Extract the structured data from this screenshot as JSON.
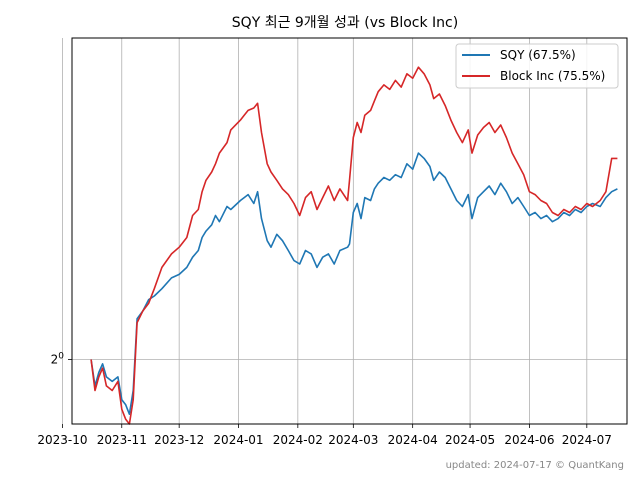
{
  "chart_data": {
    "type": "line",
    "title": "SQY 최근 9개월 성과 (vs Block Inc)",
    "xlabel": "",
    "ylabel": "",
    "y_scale": "log2",
    "y_tick_labels": [
      {
        "value": 1.0,
        "base": "2",
        "exp": "0"
      }
    ],
    "ylim": [
      0.86,
      2.12
    ],
    "xlim": [
      "2023-10-06",
      "2024-07-22"
    ],
    "x_ticks": [
      "2023-10",
      "2023-11",
      "2023-12",
      "2024-01",
      "2024-02",
      "2024-03",
      "2024-04",
      "2024-05",
      "2024-06",
      "2024-07"
    ],
    "grid": true,
    "legend_position": "top-right",
    "series": [
      {
        "name": "SQY (67.5%)",
        "color": "#1f77b4",
        "points": [
          [
            "2023-10-16",
            1.0
          ],
          [
            "2023-10-18",
            0.94
          ],
          [
            "2023-10-20",
            0.97
          ],
          [
            "2023-10-22",
            0.99
          ],
          [
            "2023-10-24",
            0.96
          ],
          [
            "2023-10-27",
            0.95
          ],
          [
            "2023-10-30",
            0.96
          ],
          [
            "2023-11-01",
            0.91
          ],
          [
            "2023-11-03",
            0.9
          ],
          [
            "2023-11-05",
            0.88
          ],
          [
            "2023-11-07",
            0.93
          ],
          [
            "2023-11-09",
            1.1
          ],
          [
            "2023-11-12",
            1.12
          ],
          [
            "2023-11-15",
            1.15
          ],
          [
            "2023-11-18",
            1.16
          ],
          [
            "2023-11-22",
            1.18
          ],
          [
            "2023-11-27",
            1.21
          ],
          [
            "2023-12-01",
            1.22
          ],
          [
            "2023-12-05",
            1.24
          ],
          [
            "2023-12-08",
            1.27
          ],
          [
            "2023-12-11",
            1.29
          ],
          [
            "2023-12-13",
            1.33
          ],
          [
            "2023-12-15",
            1.35
          ],
          [
            "2023-12-18",
            1.37
          ],
          [
            "2023-12-20",
            1.4
          ],
          [
            "2023-12-22",
            1.38
          ],
          [
            "2023-12-26",
            1.43
          ],
          [
            "2023-12-28",
            1.42
          ],
          [
            "2024-01-02",
            1.45
          ],
          [
            "2024-01-04",
            1.46
          ],
          [
            "2024-01-06",
            1.47
          ],
          [
            "2024-01-09",
            1.44
          ],
          [
            "2024-01-11",
            1.48
          ],
          [
            "2024-01-13",
            1.39
          ],
          [
            "2024-01-16",
            1.32
          ],
          [
            "2024-01-18",
            1.3
          ],
          [
            "2024-01-21",
            1.34
          ],
          [
            "2024-01-24",
            1.32
          ],
          [
            "2024-01-27",
            1.29
          ],
          [
            "2024-01-30",
            1.26
          ],
          [
            "2024-02-02",
            1.25
          ],
          [
            "2024-02-05",
            1.29
          ],
          [
            "2024-02-08",
            1.28
          ],
          [
            "2024-02-11",
            1.24
          ],
          [
            "2024-02-14",
            1.27
          ],
          [
            "2024-02-17",
            1.28
          ],
          [
            "2024-02-20",
            1.25
          ],
          [
            "2024-02-23",
            1.29
          ],
          [
            "2024-02-27",
            1.3
          ],
          [
            "2024-02-28",
            1.31
          ],
          [
            "2024-03-01",
            1.41
          ],
          [
            "2024-03-03",
            1.44
          ],
          [
            "2024-03-05",
            1.39
          ],
          [
            "2024-03-07",
            1.46
          ],
          [
            "2024-03-10",
            1.45
          ],
          [
            "2024-03-12",
            1.49
          ],
          [
            "2024-03-14",
            1.51
          ],
          [
            "2024-03-17",
            1.53
          ],
          [
            "2024-03-20",
            1.52
          ],
          [
            "2024-03-23",
            1.54
          ],
          [
            "2024-03-26",
            1.53
          ],
          [
            "2024-03-29",
            1.58
          ],
          [
            "2024-04-01",
            1.56
          ],
          [
            "2024-04-04",
            1.62
          ],
          [
            "2024-04-07",
            1.6
          ],
          [
            "2024-04-10",
            1.57
          ],
          [
            "2024-04-12",
            1.52
          ],
          [
            "2024-04-15",
            1.55
          ],
          [
            "2024-04-18",
            1.53
          ],
          [
            "2024-04-21",
            1.49
          ],
          [
            "2024-04-24",
            1.45
          ],
          [
            "2024-04-27",
            1.43
          ],
          [
            "2024-04-30",
            1.47
          ],
          [
            "2024-05-02",
            1.39
          ],
          [
            "2024-05-05",
            1.46
          ],
          [
            "2024-05-08",
            1.48
          ],
          [
            "2024-05-11",
            1.5
          ],
          [
            "2024-05-14",
            1.47
          ],
          [
            "2024-05-17",
            1.51
          ],
          [
            "2024-05-20",
            1.48
          ],
          [
            "2024-05-23",
            1.44
          ],
          [
            "2024-05-26",
            1.46
          ],
          [
            "2024-05-29",
            1.43
          ],
          [
            "2024-06-01",
            1.4
          ],
          [
            "2024-06-04",
            1.41
          ],
          [
            "2024-06-07",
            1.39
          ],
          [
            "2024-06-10",
            1.4
          ],
          [
            "2024-06-13",
            1.38
          ],
          [
            "2024-06-16",
            1.39
          ],
          [
            "2024-06-19",
            1.41
          ],
          [
            "2024-06-22",
            1.4
          ],
          [
            "2024-06-25",
            1.42
          ],
          [
            "2024-06-28",
            1.41
          ],
          [
            "2024-07-01",
            1.43
          ],
          [
            "2024-07-04",
            1.44
          ],
          [
            "2024-07-08",
            1.43
          ],
          [
            "2024-07-11",
            1.46
          ],
          [
            "2024-07-14",
            1.48
          ],
          [
            "2024-07-17",
            1.49
          ]
        ]
      },
      {
        "name": "Block Inc (75.5%)",
        "color": "#d62728",
        "points": [
          [
            "2023-10-16",
            1.0
          ],
          [
            "2023-10-18",
            0.93
          ],
          [
            "2023-10-20",
            0.96
          ],
          [
            "2023-10-22",
            0.98
          ],
          [
            "2023-10-24",
            0.94
          ],
          [
            "2023-10-27",
            0.93
          ],
          [
            "2023-10-30",
            0.95
          ],
          [
            "2023-11-01",
            0.89
          ],
          [
            "2023-11-03",
            0.87
          ],
          [
            "2023-11-05",
            0.86
          ],
          [
            "2023-11-07",
            0.91
          ],
          [
            "2023-11-09",
            1.09
          ],
          [
            "2023-11-12",
            1.12
          ],
          [
            "2023-11-15",
            1.14
          ],
          [
            "2023-11-18",
            1.18
          ],
          [
            "2023-11-22",
            1.24
          ],
          [
            "2023-11-27",
            1.28
          ],
          [
            "2023-12-01",
            1.3
          ],
          [
            "2023-12-05",
            1.33
          ],
          [
            "2023-12-08",
            1.4
          ],
          [
            "2023-12-11",
            1.42
          ],
          [
            "2023-12-13",
            1.48
          ],
          [
            "2023-12-15",
            1.52
          ],
          [
            "2023-12-18",
            1.55
          ],
          [
            "2023-12-20",
            1.58
          ],
          [
            "2023-12-22",
            1.62
          ],
          [
            "2023-12-26",
            1.66
          ],
          [
            "2023-12-28",
            1.71
          ],
          [
            "2024-01-02",
            1.75
          ],
          [
            "2024-01-04",
            1.77
          ],
          [
            "2024-01-06",
            1.79
          ],
          [
            "2024-01-09",
            1.8
          ],
          [
            "2024-01-11",
            1.82
          ],
          [
            "2024-01-13",
            1.7
          ],
          [
            "2024-01-16",
            1.58
          ],
          [
            "2024-01-18",
            1.55
          ],
          [
            "2024-01-21",
            1.52
          ],
          [
            "2024-01-24",
            1.49
          ],
          [
            "2024-01-27",
            1.47
          ],
          [
            "2024-01-30",
            1.44
          ],
          [
            "2024-02-02",
            1.4
          ],
          [
            "2024-02-05",
            1.46
          ],
          [
            "2024-02-08",
            1.48
          ],
          [
            "2024-02-11",
            1.42
          ],
          [
            "2024-02-14",
            1.46
          ],
          [
            "2024-02-17",
            1.5
          ],
          [
            "2024-02-20",
            1.45
          ],
          [
            "2024-02-23",
            1.49
          ],
          [
            "2024-02-27",
            1.45
          ],
          [
            "2024-02-28",
            1.52
          ],
          [
            "2024-03-01",
            1.68
          ],
          [
            "2024-03-03",
            1.74
          ],
          [
            "2024-03-05",
            1.7
          ],
          [
            "2024-03-07",
            1.77
          ],
          [
            "2024-03-10",
            1.79
          ],
          [
            "2024-03-12",
            1.83
          ],
          [
            "2024-03-14",
            1.87
          ],
          [
            "2024-03-17",
            1.9
          ],
          [
            "2024-03-20",
            1.88
          ],
          [
            "2024-03-23",
            1.92
          ],
          [
            "2024-03-26",
            1.89
          ],
          [
            "2024-03-29",
            1.95
          ],
          [
            "2024-04-01",
            1.93
          ],
          [
            "2024-04-04",
            1.98
          ],
          [
            "2024-04-07",
            1.95
          ],
          [
            "2024-04-10",
            1.9
          ],
          [
            "2024-04-12",
            1.84
          ],
          [
            "2024-04-15",
            1.86
          ],
          [
            "2024-04-18",
            1.81
          ],
          [
            "2024-04-21",
            1.75
          ],
          [
            "2024-04-24",
            1.7
          ],
          [
            "2024-04-27",
            1.66
          ],
          [
            "2024-04-30",
            1.71
          ],
          [
            "2024-05-02",
            1.62
          ],
          [
            "2024-05-05",
            1.69
          ],
          [
            "2024-05-08",
            1.72
          ],
          [
            "2024-05-11",
            1.74
          ],
          [
            "2024-05-14",
            1.7
          ],
          [
            "2024-05-17",
            1.73
          ],
          [
            "2024-05-20",
            1.68
          ],
          [
            "2024-05-23",
            1.62
          ],
          [
            "2024-05-26",
            1.58
          ],
          [
            "2024-05-29",
            1.54
          ],
          [
            "2024-06-01",
            1.48
          ],
          [
            "2024-06-04",
            1.47
          ],
          [
            "2024-06-07",
            1.45
          ],
          [
            "2024-06-10",
            1.44
          ],
          [
            "2024-06-13",
            1.41
          ],
          [
            "2024-06-16",
            1.4
          ],
          [
            "2024-06-19",
            1.42
          ],
          [
            "2024-06-22",
            1.41
          ],
          [
            "2024-06-25",
            1.43
          ],
          [
            "2024-06-28",
            1.42
          ],
          [
            "2024-07-01",
            1.44
          ],
          [
            "2024-07-04",
            1.43
          ],
          [
            "2024-07-08",
            1.45
          ],
          [
            "2024-07-11",
            1.48
          ],
          [
            "2024-07-14",
            1.6
          ],
          [
            "2024-07-17",
            1.6
          ]
        ]
      }
    ]
  },
  "footer": {
    "updated": "updated: 2024-07-17 © QuantKang"
  }
}
